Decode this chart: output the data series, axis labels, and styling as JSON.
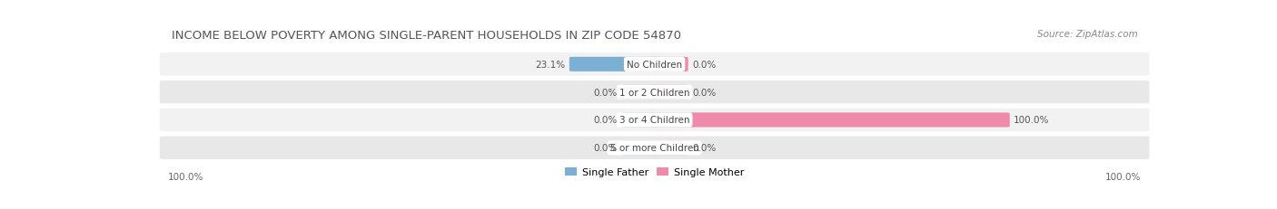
{
  "title": "INCOME BELOW POVERTY AMONG SINGLE-PARENT HOUSEHOLDS IN ZIP CODE 54870",
  "source": "Source: ZipAtlas.com",
  "categories": [
    "No Children",
    "1 or 2 Children",
    "3 or 4 Children",
    "5 or more Children"
  ],
  "father_values": [
    23.1,
    0.0,
    0.0,
    0.0
  ],
  "mother_values": [
    0.0,
    0.0,
    100.0,
    0.0
  ],
  "father_color": "#7bafd4",
  "mother_color": "#f08aaa",
  "title_fontsize": 9.5,
  "source_fontsize": 7.5,
  "label_fontsize": 7.5,
  "annotation_fontsize": 7.5,
  "max_value": 100.0,
  "left_axis_label": "100.0%",
  "right_axis_label": "100.0%",
  "axis_label_fontsize": 7.5,
  "legend_fontsize": 8,
  "row_bg_light": "#f2f2f2",
  "row_bg_dark": "#e8e8e8",
  "center_label_bg": "#ffffff"
}
